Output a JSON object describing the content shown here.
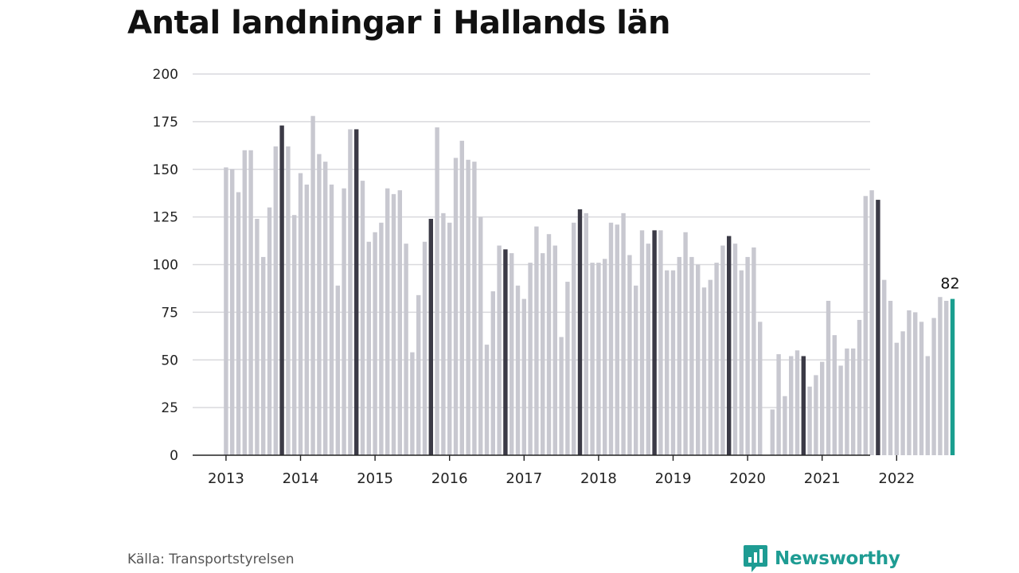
{
  "title": "Antal landningar i Hallands län",
  "source": "Källa: Transportstyrelsen",
  "brand": "Newsworthy",
  "colors": {
    "bar": "#c8c8d0",
    "highlight": "#3b3a46",
    "latest": "#1a9e8f",
    "grid": "#d9d9dd",
    "axis": "#222222",
    "brand": "#1e9c93"
  },
  "chart_data": {
    "type": "bar",
    "title": "Antal landningar i Hallands län",
    "xlabel": "",
    "ylabel": "",
    "ylim": [
      0,
      200
    ],
    "yticks": [
      0,
      25,
      50,
      75,
      100,
      125,
      150,
      175,
      200
    ],
    "grid": true,
    "x_ticks": [
      "2013",
      "2014",
      "2015",
      "2016",
      "2017",
      "2018",
      "2019",
      "2020",
      "2021",
      "2022"
    ],
    "first_month": "2013-01",
    "highlight_month": "October",
    "last_value_label": "82",
    "values": [
      151,
      150,
      138,
      160,
      160,
      124,
      104,
      130,
      162,
      173,
      162,
      126,
      148,
      142,
      178,
      158,
      154,
      142,
      89,
      140,
      171,
      171,
      144,
      112,
      117,
      122,
      140,
      137,
      139,
      111,
      54,
      84,
      112,
      124,
      172,
      127,
      122,
      156,
      165,
      155,
      154,
      125,
      58,
      86,
      110,
      108,
      106,
      89,
      82,
      101,
      120,
      106,
      116,
      110,
      62,
      91,
      122,
      129,
      127,
      101,
      101,
      103,
      122,
      121,
      127,
      105,
      89,
      118,
      111,
      118,
      118,
      97,
      97,
      104,
      117,
      104,
      100,
      88,
      92,
      101,
      110,
      115,
      111,
      97,
      104,
      109,
      70,
      null,
      24,
      53,
      31,
      52,
      55,
      52,
      36,
      42,
      49,
      81,
      63,
      47,
      56,
      56,
      71,
      136,
      139,
      134,
      92,
      81,
      59,
      65,
      76,
      75,
      70,
      52,
      72,
      83,
      81,
      82
    ]
  }
}
